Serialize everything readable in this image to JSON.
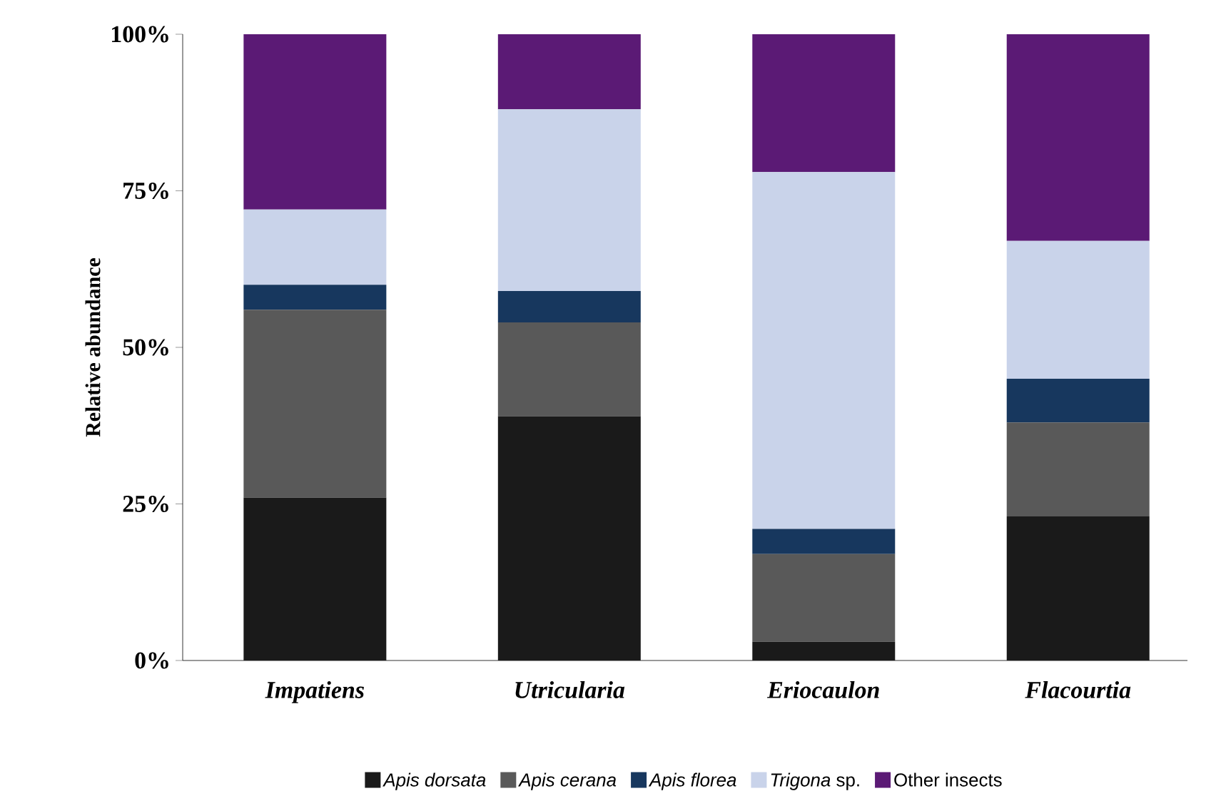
{
  "chart_data": {
    "type": "bar",
    "stacked": true,
    "ylabel": "Relative abundance",
    "categories": [
      "Impatiens",
      "Utricularia",
      "Eriocaulon",
      "Flacourtia"
    ],
    "series": [
      {
        "name": "*Apis dorsata*",
        "color": "#1a1a1a",
        "values": [
          26,
          39,
          3,
          23
        ]
      },
      {
        "name": "*Apis cerana*",
        "color": "#595959",
        "values": [
          30,
          15,
          14,
          15
        ]
      },
      {
        "name": "*Apis florea*",
        "color": "#17375e",
        "values": [
          4,
          5,
          4,
          7
        ]
      },
      {
        "name": "*Trigona* sp.",
        "color": "#c9d3ea",
        "values": [
          12,
          29,
          57,
          22
        ]
      },
      {
        "name": "Other insects",
        "color": "#5b1a75",
        "values": [
          28,
          12,
          22,
          33
        ]
      }
    ],
    "ylim": [
      0,
      100
    ],
    "yticks": [
      {
        "value": 0,
        "label": "0%"
      },
      {
        "value": 25,
        "label": "25%"
      },
      {
        "value": 50,
        "label": "50%"
      },
      {
        "value": 75,
        "label": "75%"
      },
      {
        "value": 100,
        "label": "100%"
      }
    ],
    "grid": false,
    "legend": "bottom"
  }
}
